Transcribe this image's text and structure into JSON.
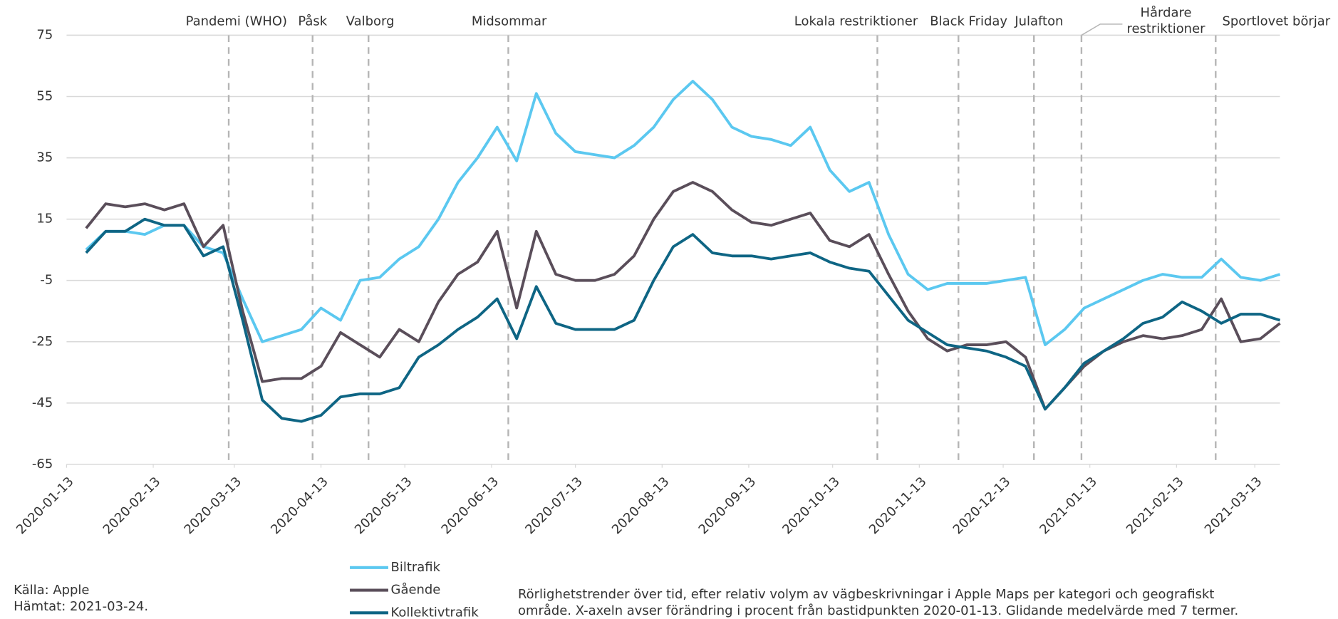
{
  "chart_data": {
    "type": "line",
    "x": [
      "2020-01-13",
      "2020-01-20",
      "2020-01-27",
      "2020-02-03",
      "2020-02-10",
      "2020-02-17",
      "2020-02-24",
      "2020-03-02",
      "2020-03-09",
      "2020-03-16",
      "2020-03-23",
      "2020-03-30",
      "2020-04-06",
      "2020-04-13",
      "2020-04-20",
      "2020-04-27",
      "2020-05-04",
      "2020-05-11",
      "2020-05-18",
      "2020-05-25",
      "2020-06-01",
      "2020-06-08",
      "2020-06-15",
      "2020-06-22",
      "2020-06-29",
      "2020-07-06",
      "2020-07-13",
      "2020-07-20",
      "2020-07-27",
      "2020-08-03",
      "2020-08-10",
      "2020-08-17",
      "2020-08-24",
      "2020-08-31",
      "2020-09-07",
      "2020-09-14",
      "2020-09-21",
      "2020-09-28",
      "2020-10-05",
      "2020-10-12",
      "2020-10-19",
      "2020-10-26",
      "2020-11-02",
      "2020-11-09",
      "2020-11-16",
      "2020-11-23",
      "2020-11-30",
      "2020-12-07",
      "2020-12-14",
      "2020-12-21",
      "2020-12-28",
      "2021-01-04",
      "2021-01-11",
      "2021-01-18",
      "2021-01-25",
      "2021-02-01",
      "2021-02-08",
      "2021-02-15",
      "2021-02-22",
      "2021-03-01",
      "2021-03-08",
      "2021-03-15",
      "2021-03-22"
    ],
    "series": [
      {
        "name": "Biltrafik",
        "color": "#5bc8f0",
        "values": [
          null,
          5,
          11,
          11,
          10,
          13,
          13,
          6,
          4,
          -11,
          -25,
          -23,
          -21,
          -14,
          -18,
          -5,
          -4,
          2,
          6,
          15,
          27,
          35,
          45,
          34,
          56,
          43,
          37,
          36,
          35,
          39,
          45,
          54,
          60,
          54,
          45,
          42,
          41,
          39,
          45,
          31,
          24,
          27,
          10,
          -3,
          -8,
          -6,
          -6,
          -6,
          -5,
          -4,
          -26,
          -21,
          -14,
          -11,
          -8,
          -5,
          -3,
          -4,
          -4,
          2,
          -4,
          -5,
          -3
        ]
      },
      {
        "name": "Gående",
        "color": "#5a4e5a",
        "values": [
          null,
          12,
          20,
          19,
          20,
          18,
          20,
          6,
          13,
          -15,
          -38,
          -37,
          -37,
          -33,
          -22,
          -26,
          -30,
          -21,
          -25,
          -12,
          -3,
          1,
          11,
          -14,
          11,
          -3,
          -5,
          -5,
          -3,
          3,
          15,
          24,
          27,
          24,
          18,
          14,
          13,
          15,
          17,
          8,
          6,
          10,
          -3,
          -15,
          -24,
          -28,
          -26,
          -26,
          -25,
          -30,
          -47,
          -40,
          -33,
          -28,
          -25,
          -23,
          -24,
          -23,
          -21,
          -11,
          -25,
          -24,
          -19
        ]
      },
      {
        "name": "Kollektivtrafik",
        "color": "#0e6584",
        "values": [
          null,
          4,
          11,
          11,
          15,
          13,
          13,
          3,
          6,
          -18,
          -44,
          -50,
          -51,
          -49,
          -43,
          -42,
          -42,
          -40,
          -30,
          -26,
          -21,
          -17,
          -11,
          -24,
          -7,
          -19,
          -21,
          -21,
          -21,
          -18,
          -5,
          6,
          10,
          4,
          3,
          3,
          2,
          3,
          4,
          1,
          -1,
          -2,
          -10,
          -18,
          -22,
          -26,
          -27,
          -28,
          -30,
          -33,
          -47,
          -40,
          -32,
          -28,
          -24,
          -19,
          -17,
          -12,
          -15,
          -19,
          -16,
          -16,
          -18
        ]
      }
    ],
    "xlim": [
      "2020-01-13",
      "2021-03-22"
    ],
    "xticks": [
      "2020-01-13",
      "2020-02-13",
      "2020-03-13",
      "2020-04-13",
      "2020-05-13",
      "2020-06-13",
      "2020-07-13",
      "2020-08-13",
      "2020-09-13",
      "2020-10-13",
      "2020-11-13",
      "2020-12-13",
      "2021-01-13",
      "2021-02-13",
      "2021-03-13"
    ],
    "ylim": [
      -65,
      75
    ],
    "yticks": [
      75,
      55,
      35,
      15,
      -5,
      -25,
      -45,
      -65
    ],
    "grid": true,
    "annotations": [
      {
        "x": "2020-03-11",
        "label": "Pandemi (WHO)"
      },
      {
        "x": "2020-04-10",
        "label": "Påsk"
      },
      {
        "x": "2020-04-30",
        "label": "Valborg"
      },
      {
        "x": "2020-06-19",
        "label": "Midsommar"
      },
      {
        "x": "2020-10-29",
        "label": "Lokala restriktioner"
      },
      {
        "x": "2020-11-27",
        "label": "Black Friday"
      },
      {
        "x": "2020-12-24",
        "label": "Julafton"
      },
      {
        "x": "2021-01-10",
        "lines": [
          "Hårdare",
          "restriktioner"
        ]
      },
      {
        "x": "2021-02-27",
        "label": "Sportlovet börjar"
      }
    ],
    "source": "Källa: Apple",
    "retrieved": "Hämtat: 2021-03-24.",
    "note_lines": [
      "Rörlighetstrender över tid, efter relativ volym av vägbeskrivningar i Apple Maps per kategori och geografiskt",
      "område. X-axeln avser förändring i procent från bastidpunkten 2020-01-13. Glidande medelvärde med 7 termer."
    ]
  }
}
